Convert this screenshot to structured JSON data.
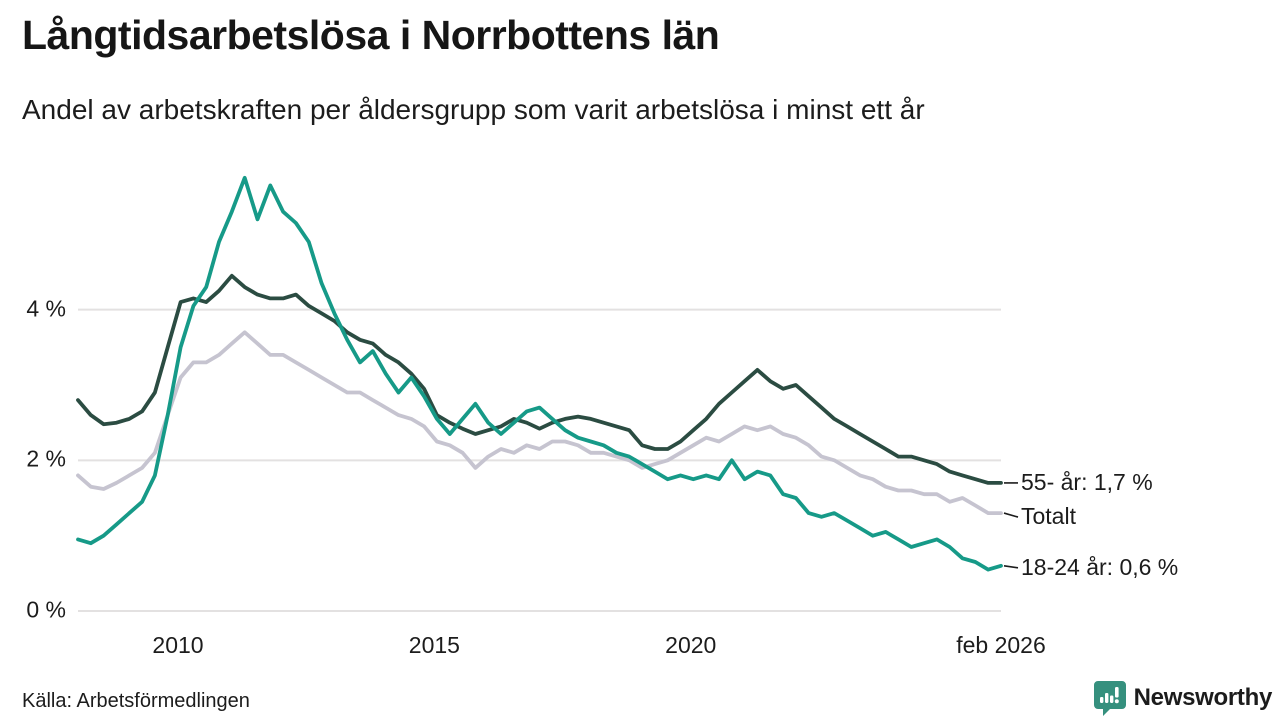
{
  "header": {
    "title": "Långtidsarbetslösa i Norrbottens län",
    "subtitle": "Andel av arbetskraften per åldersgrupp som varit arbetslösa i minst ett år"
  },
  "footer": {
    "source": "Källa: Arbetsförmedlingen",
    "brand_name": "Newsworthy",
    "brand_color": "#35907e"
  },
  "chart_data": {
    "type": "line",
    "title": "Långtidsarbetslösa i Norrbottens län",
    "subtitle": "Andel av arbetskraften per åldersgrupp som varit arbetslösa i minst ett år",
    "unit": "%",
    "x_start": 2008.05,
    "x_step": 0.25,
    "x_end": 2026.05,
    "ylim": [
      0,
      6
    ],
    "grid": "horizontal",
    "grid_color": "#e3e1e1",
    "axis_text_color": "#1c1c1c",
    "legend_position": "right-end-annotations",
    "x_ticks": [
      {
        "value": 2010,
        "label": "2010"
      },
      {
        "value": 2015,
        "label": "2015"
      },
      {
        "value": 2020,
        "label": "2020"
      },
      {
        "value": 2026.05,
        "label": "feb 2026"
      }
    ],
    "y_ticks": [
      {
        "value": 0,
        "label": "0 %"
      },
      {
        "value": 2,
        "label": "2 %"
      },
      {
        "value": 4,
        "label": "4 %"
      }
    ],
    "series": [
      {
        "name": "55- år",
        "end_label": "55- år: 1,7 %",
        "last_value": 1.7,
        "color": "#2b4c42",
        "values": [
          2.8,
          2.6,
          2.48,
          2.5,
          2.55,
          2.65,
          2.9,
          3.5,
          4.1,
          4.15,
          4.1,
          4.25,
          4.45,
          4.3,
          4.2,
          4.15,
          4.15,
          4.2,
          4.05,
          3.95,
          3.85,
          3.7,
          3.6,
          3.55,
          3.4,
          3.3,
          3.15,
          2.95,
          2.6,
          2.5,
          2.42,
          2.35,
          2.4,
          2.45,
          2.55,
          2.5,
          2.42,
          2.5,
          2.55,
          2.58,
          2.55,
          2.5,
          2.45,
          2.4,
          2.2,
          2.15,
          2.15,
          2.25,
          2.4,
          2.55,
          2.75,
          2.9,
          3.05,
          3.2,
          3.05,
          2.95,
          3.0,
          2.85,
          2.7,
          2.55,
          2.45,
          2.35,
          2.25,
          2.15,
          2.05,
          2.05,
          2.0,
          1.95,
          1.85,
          1.8,
          1.75,
          1.7,
          1.7
        ]
      },
      {
        "name": "Totalt",
        "end_label": "Totalt",
        "last_value": 1.3,
        "color": "#c6c4d0",
        "values": [
          1.8,
          1.65,
          1.62,
          1.7,
          1.8,
          1.9,
          2.1,
          2.6,
          3.1,
          3.3,
          3.3,
          3.4,
          3.55,
          3.7,
          3.55,
          3.4,
          3.4,
          3.3,
          3.2,
          3.1,
          3.0,
          2.9,
          2.9,
          2.8,
          2.7,
          2.6,
          2.55,
          2.45,
          2.25,
          2.2,
          2.1,
          1.9,
          2.05,
          2.15,
          2.1,
          2.2,
          2.15,
          2.25,
          2.25,
          2.2,
          2.1,
          2.1,
          2.05,
          2.0,
          1.9,
          1.95,
          2.0,
          2.1,
          2.2,
          2.3,
          2.25,
          2.35,
          2.45,
          2.4,
          2.45,
          2.35,
          2.3,
          2.2,
          2.05,
          2.0,
          1.9,
          1.8,
          1.75,
          1.65,
          1.6,
          1.6,
          1.55,
          1.55,
          1.45,
          1.5,
          1.4,
          1.3,
          1.3
        ]
      },
      {
        "name": "18-24 år",
        "end_label": "18-24 år: 0,6 %",
        "last_value": 0.6,
        "color": "#169a88",
        "values": [
          0.95,
          0.9,
          1.0,
          1.15,
          1.3,
          1.45,
          1.8,
          2.6,
          3.5,
          4.05,
          4.3,
          4.9,
          5.3,
          5.75,
          5.2,
          5.65,
          5.3,
          5.15,
          4.9,
          4.35,
          3.95,
          3.6,
          3.3,
          3.45,
          3.15,
          2.9,
          3.1,
          2.85,
          2.55,
          2.35,
          2.55,
          2.75,
          2.5,
          2.35,
          2.5,
          2.65,
          2.7,
          2.55,
          2.4,
          2.3,
          2.25,
          2.2,
          2.1,
          2.05,
          1.95,
          1.85,
          1.75,
          1.8,
          1.75,
          1.8,
          1.75,
          2.0,
          1.75,
          1.85,
          1.8,
          1.55,
          1.5,
          1.3,
          1.25,
          1.3,
          1.2,
          1.1,
          1.0,
          1.05,
          0.95,
          0.85,
          0.9,
          0.95,
          0.85,
          0.7,
          0.65,
          0.55,
          0.6
        ]
      }
    ]
  }
}
